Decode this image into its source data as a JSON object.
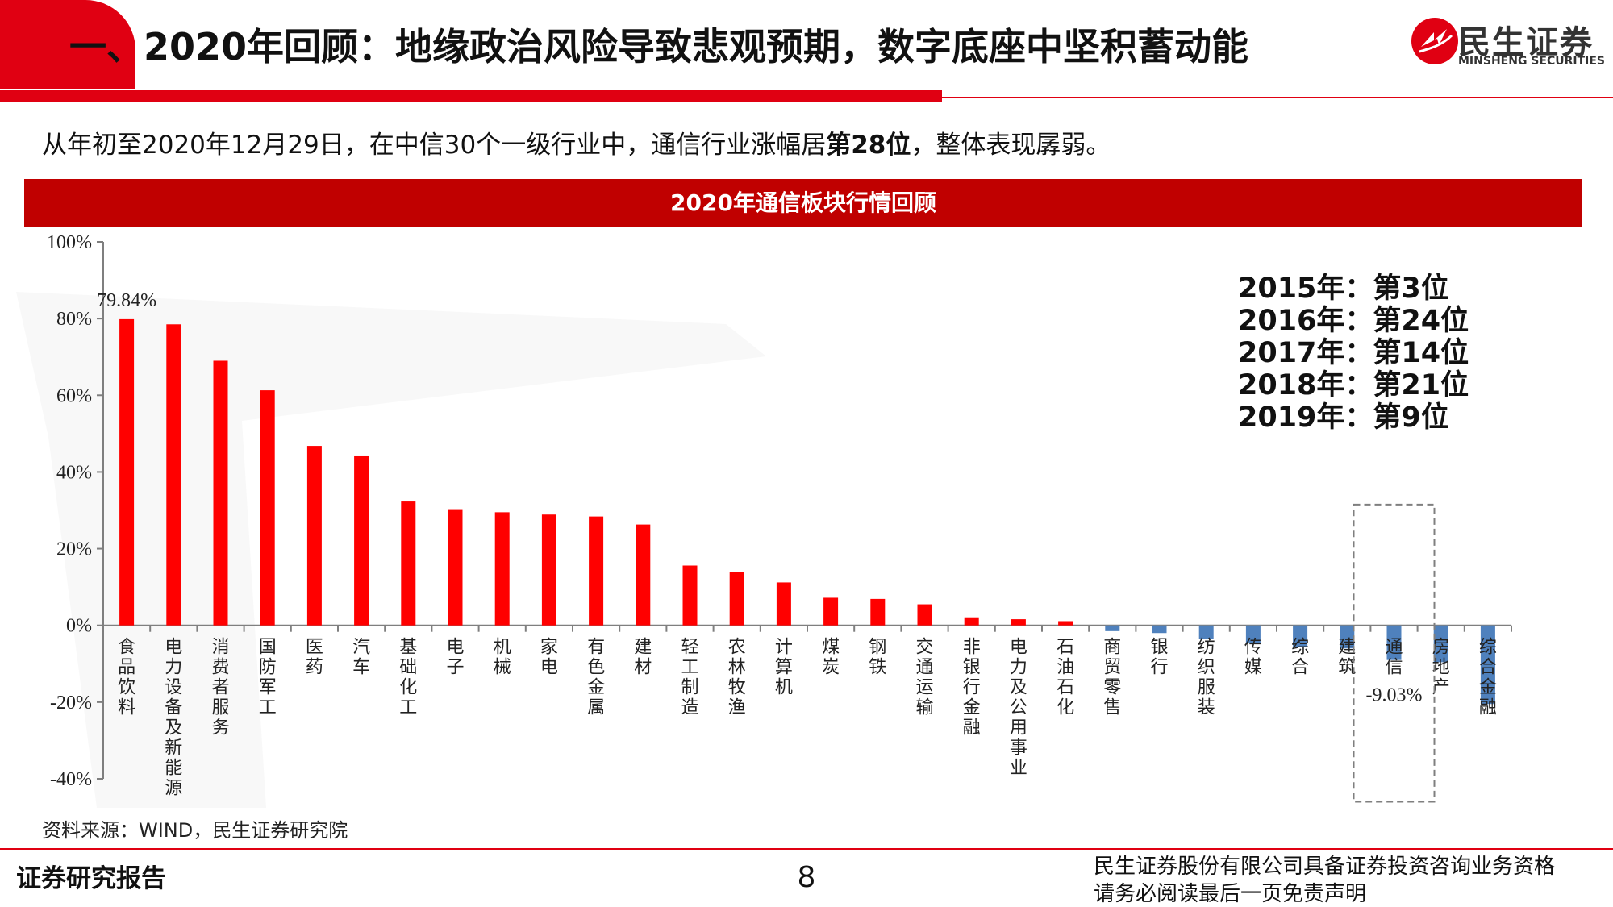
{
  "header": {
    "title": "一、2020年回顾：地缘政治风险导致悲观预期，数字底座中坚积蓄动能",
    "brand_cn": "民生证券",
    "brand_en": "MINSHENG SECURITIES",
    "accent_color": "#e00012"
  },
  "subtitle": {
    "prefix": "从年初至2020年12月29日，在中信30个一级行业中，通信行业涨幅居",
    "rank": "第28位",
    "suffix": "，整体表现孱弱。"
  },
  "chart_title": "2020年通信板块行情回顾",
  "rank_history": [
    "2015年：第3位",
    "2016年：第24位",
    "2017年：第14位",
    "2018年：第21位",
    "2019年：第9位"
  ],
  "chart_data": {
    "type": "bar",
    "title": "2020年通信板块行情回顾",
    "xlabel": "",
    "ylabel": "",
    "ylim": [
      -40,
      100
    ],
    "yticks": [
      "100%",
      "80%",
      "60%",
      "40%",
      "20%",
      "0%",
      "-20%",
      "-40%"
    ],
    "ytick_values": [
      100,
      80,
      60,
      40,
      20,
      0,
      -20,
      -40
    ],
    "categories": [
      "食品饮料",
      "电力设备及新能源",
      "消费者服务",
      "国防军工",
      "医药",
      "汽车",
      "基础化工",
      "电子",
      "机械",
      "家电",
      "有色金属",
      "建材",
      "轻工制造",
      "农林牧渔",
      "计算机",
      "煤炭",
      "钢铁",
      "交通运输",
      "非银行金融",
      "电力及公用事业",
      "石油石化",
      "商贸零售",
      "银行",
      "纺织服装",
      "传媒",
      "综合",
      "建筑",
      "通信",
      "房地产",
      "综合金融"
    ],
    "values": [
      79.84,
      78.5,
      69.0,
      61.3,
      46.8,
      44.3,
      32.3,
      30.3,
      29.5,
      28.9,
      28.4,
      26.3,
      15.6,
      13.9,
      11.2,
      7.2,
      6.9,
      5.5,
      2.1,
      1.6,
      1.1,
      -1.5,
      -2.0,
      -3.6,
      -4.7,
      -5.6,
      -6.0,
      -9.03,
      -9.6,
      -20.5
    ],
    "data_labels": [
      {
        "category": "食品饮料",
        "text": "79.84%"
      },
      {
        "category": "通信",
        "text": "-9.03%"
      }
    ],
    "highlight_category": "通信",
    "positive_color": "#ff0000",
    "negative_color": "#4f81bd",
    "grid": false,
    "legend": "none"
  },
  "source": "资料来源：WIND，民生证券研究院",
  "footer": {
    "left": "证券研究报告",
    "page": "8",
    "right_line1": "民生证券股份有限公司具备证券投资咨询业务资格",
    "right_line2": "请务必阅读最后一页免责声明"
  }
}
